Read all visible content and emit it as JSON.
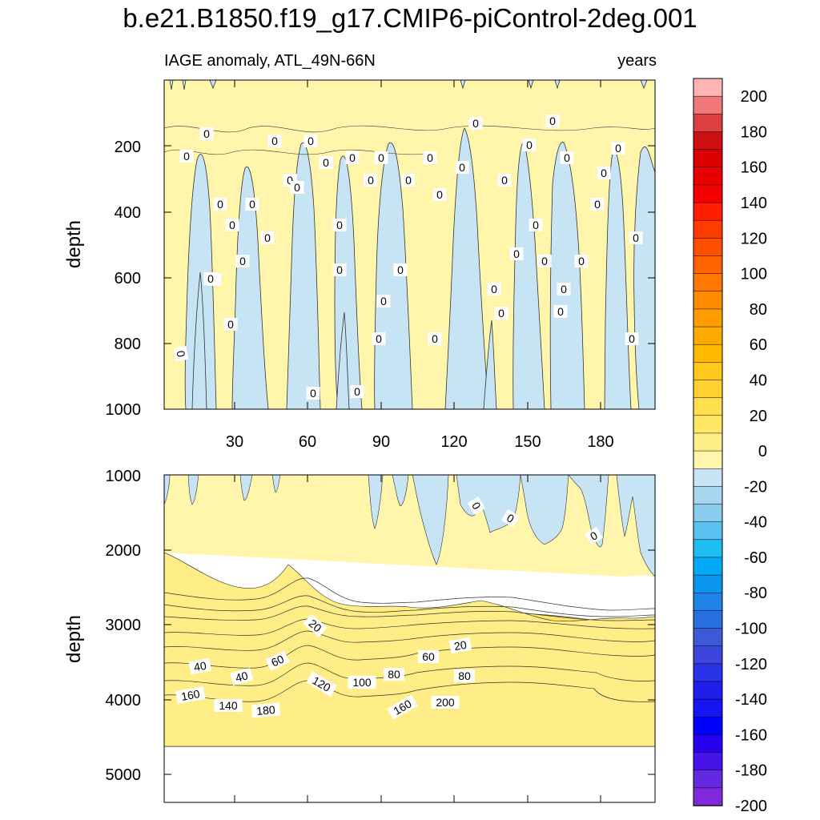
{
  "chart_data": {
    "type": "heatmap",
    "title": "b.e21.B1850.f19_g17.CMIP6-piControl-2deg.001",
    "subtitle_left": "IAGE anomaly, ATL_49N-66N",
    "subtitle_right": "years",
    "top_panel": {
      "ylabel": "depth",
      "ylim": [
        0,
        1000
      ],
      "yticks": [
        "200",
        "400",
        "600",
        "800",
        "1000"
      ],
      "xlim": [
        1,
        201
      ],
      "xticks": [
        "30",
        "60",
        "90",
        "120",
        "150",
        "180"
      ],
      "contour_labels": [
        "0"
      ]
    },
    "bottom_panel": {
      "ylabel": "depth",
      "ylim": [
        1000,
        5400
      ],
      "yticks": [
        "1000",
        "2000",
        "3000",
        "4000",
        "5000"
      ],
      "data_bottom_depth": 4620,
      "contour_labels": [
        "0",
        "0",
        "0",
        "20",
        "20",
        "40",
        "40",
        "60",
        "60",
        "80",
        "80",
        "100",
        "120",
        "140",
        "160",
        "160",
        "180",
        "200"
      ]
    },
    "colorbar": {
      "labels": [
        "200",
        "180",
        "160",
        "140",
        "120",
        "100",
        "80",
        "60",
        "40",
        "20",
        "0",
        "-20",
        "-40",
        "-60",
        "-80",
        "-100",
        "-120",
        "-140",
        "-160",
        "-180",
        "-200"
      ],
      "colors": [
        "#ffb4b4",
        "#f07878",
        "#dc4040",
        "#cc1010",
        "#dc0000",
        "#e80000",
        "#f40000",
        "#ff1e00",
        "#ff3c00",
        "#ff5000",
        "#ff6400",
        "#ff7800",
        "#ff8c00",
        "#ff9c00",
        "#ffaa00",
        "#ffba00",
        "#ffc81e",
        "#ffd232",
        "#ffde50",
        "#ffe664",
        "#ffee88",
        "#fff6ac",
        "#c6e4f4",
        "#a8d8f0",
        "#88cdee",
        "#5ac3f2",
        "#1ebef4",
        "#00aaf4",
        "#0a96ec",
        "#1e82e6",
        "#2870e0",
        "#3c5ad8",
        "#3c46dc",
        "#2832e6",
        "#1e1ee8",
        "#1414f4",
        "#0000ff",
        "#2800f0",
        "#4614e8",
        "#6428e0",
        "#8228dc"
      ]
    }
  }
}
